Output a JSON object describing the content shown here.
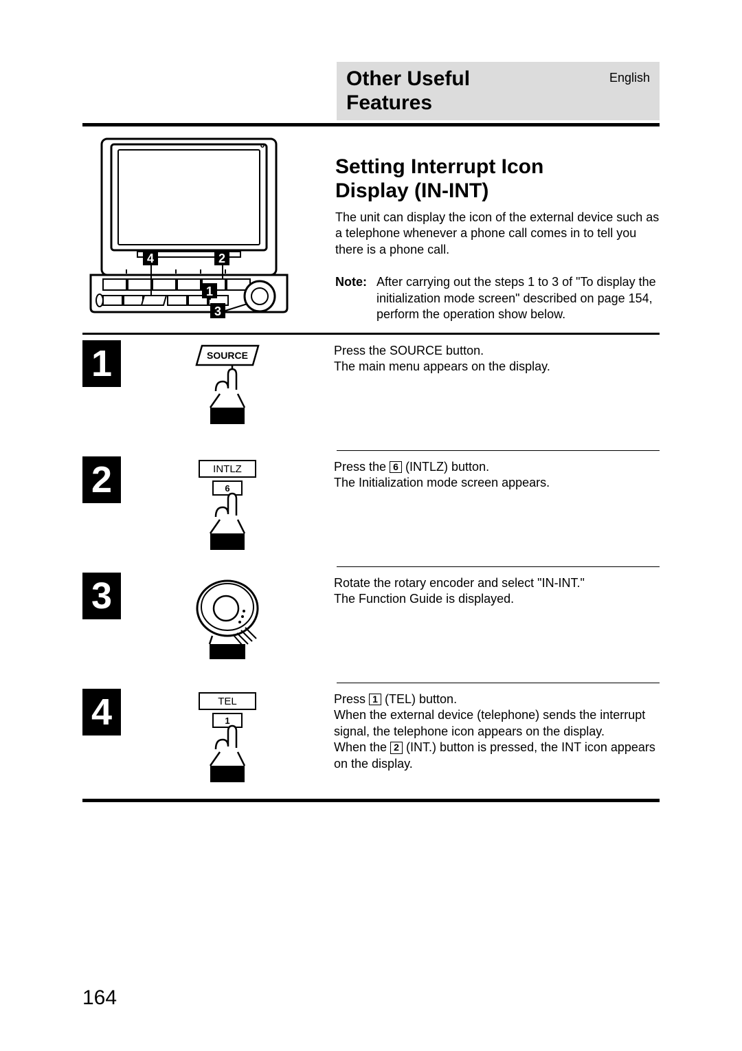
{
  "header": {
    "title_line1": "Other Useful",
    "title_line2": "Features",
    "language": "English"
  },
  "section_heading_line1": "Setting Interrupt Icon",
  "section_heading_line2": "Display (IN-INT)",
  "intro_text": "The unit can display the icon of the external device such as a telephone whenever a phone call comes in to tell you there is a phone call.",
  "note": {
    "label": "Note:",
    "text": "After carrying out the steps 1 to 3 of \"To display the initialization mode screen\" described on page 154, perform the operation show below."
  },
  "device_diagram": {
    "callouts": [
      "1",
      "2",
      "3",
      "4"
    ],
    "stroke": "#000000",
    "fill": "#ffffff"
  },
  "steps": [
    {
      "number": "1",
      "graphic": {
        "type": "parallelogram_button_press",
        "label": "SOURCE",
        "sub": null
      },
      "text_parts": [
        [
          "Press the SOURCE button."
        ],
        [
          "The main menu appears on the display."
        ]
      ]
    },
    {
      "number": "2",
      "graphic": {
        "type": "rect_button_press",
        "label": "INTLZ",
        "sub": "6"
      },
      "text_parts": [
        [
          "Press the ",
          "KEY:6",
          " (INTLZ) button."
        ],
        [
          "The Initialization mode screen appears."
        ]
      ]
    },
    {
      "number": "3",
      "graphic": {
        "type": "rotary_encoder",
        "label": null,
        "sub": null
      },
      "text_parts": [
        [
          "Rotate the rotary encoder and select \"IN-INT.\""
        ],
        [
          "The Function Guide is displayed."
        ]
      ]
    },
    {
      "number": "4",
      "graphic": {
        "type": "rect_button_press",
        "label": "TEL",
        "sub": "1"
      },
      "text_parts": [
        [
          "Press ",
          "KEY:1",
          " (TEL) button."
        ],
        [
          "When the external device (telephone) sends the interrupt signal, the telephone icon appears on the display."
        ],
        [
          "When the ",
          "KEY:2",
          " (INT.) button is pressed, the INT icon appears on the display."
        ]
      ]
    }
  ],
  "page_number": "164",
  "colors": {
    "header_bg": "#dcdcdc",
    "ink": "#000000",
    "paper": "#ffffff"
  },
  "typography": {
    "heading_pt": 30,
    "body_pt": 18,
    "stepnum_pt": 54
  }
}
